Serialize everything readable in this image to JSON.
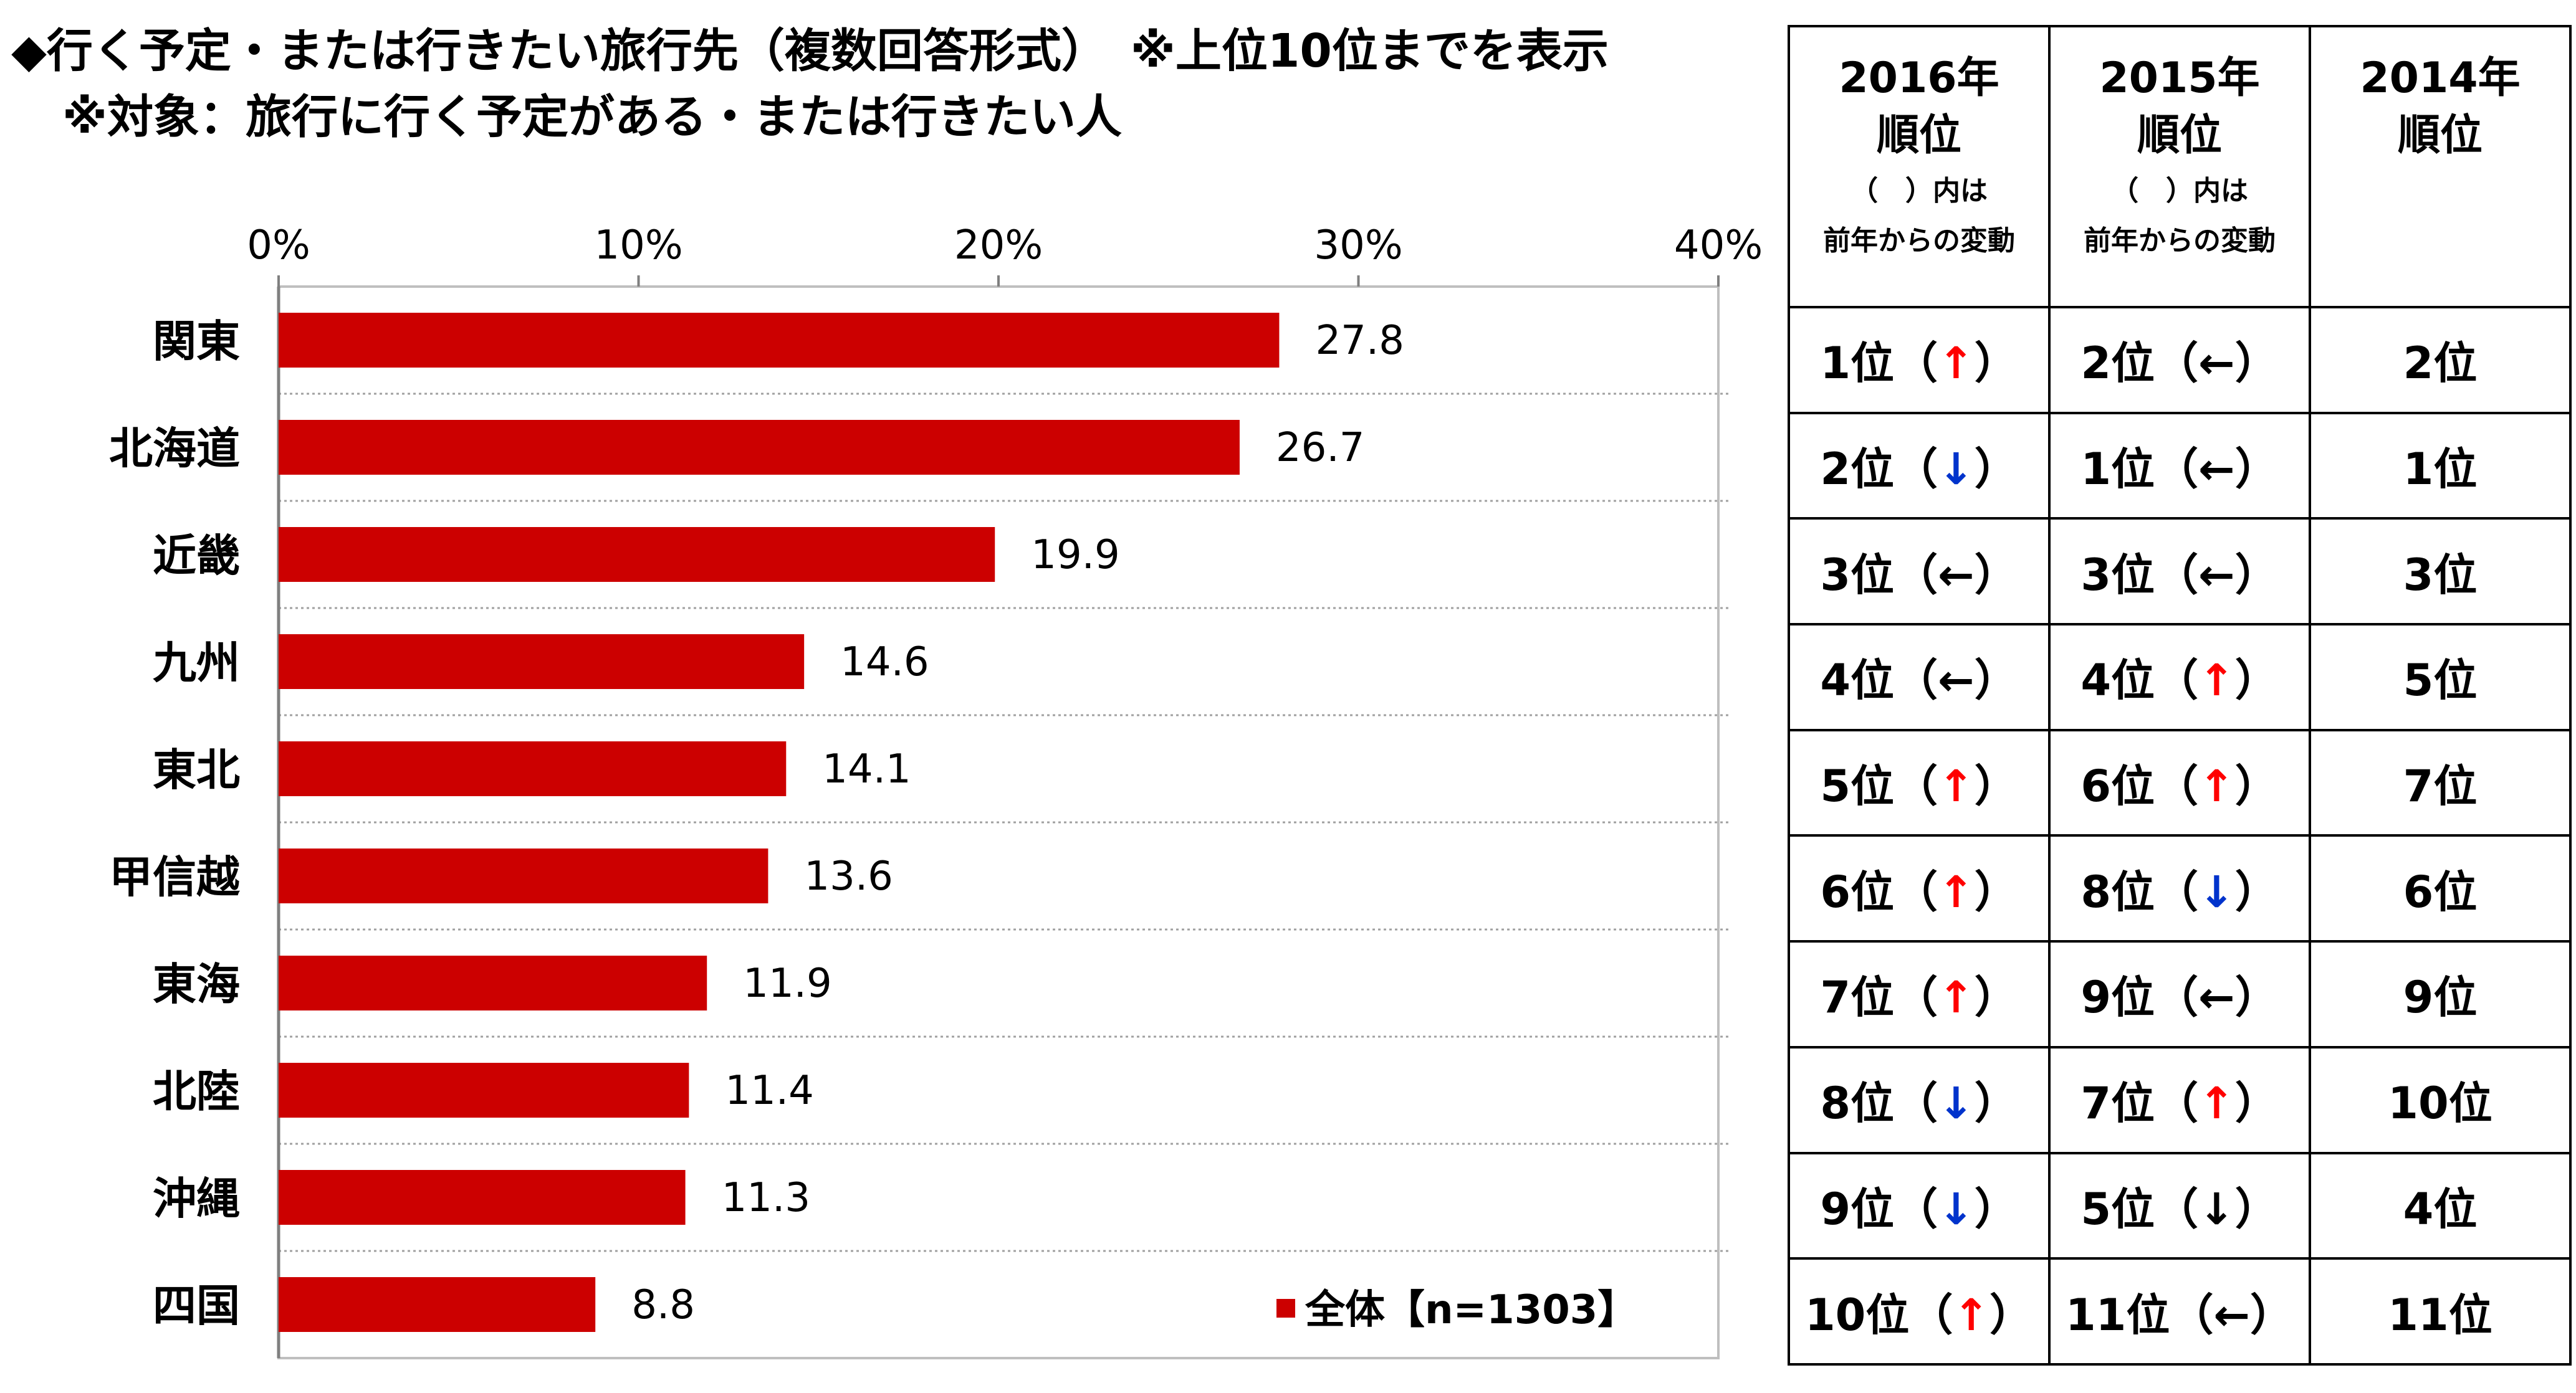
{
  "titles": {
    "line1": "◆行く予定・または行きたい旅行先（複数回答形式）　※上位10位までを表示",
    "line2": "※対象：旅行に行く予定がある・または行きたい人"
  },
  "chart_data": {
    "type": "bar",
    "orientation": "horizontal",
    "categories": [
      "関東",
      "北海道",
      "近畿",
      "九州",
      "東北",
      "甲信越",
      "東海",
      "北陸",
      "沖縄",
      "四国"
    ],
    "series": [
      {
        "name": "全体【n=1303】",
        "values": [
          27.8,
          26.7,
          19.9,
          14.6,
          14.1,
          13.6,
          11.9,
          11.4,
          11.3,
          8.8
        ]
      }
    ],
    "data_labels": [
      "27.8",
      "26.7",
      "19.9",
      "14.6",
      "14.1",
      "13.6",
      "11.9",
      "11.4",
      "11.3",
      "8.8"
    ],
    "xlim": [
      0,
      40
    ],
    "x_ticks": [
      0,
      10,
      20,
      30,
      40
    ],
    "x_tick_labels": [
      "0%",
      "10%",
      "20%",
      "30%",
      "40%"
    ],
    "x_axis_position": "top",
    "grid": true,
    "legend_position": "bottom-right",
    "bar_color": "#cc0000"
  },
  "rank_table": {
    "headers": [
      {
        "year": "2016年",
        "label": "順位",
        "sub1": "（　）内は",
        "sub2": "前年からの変動"
      },
      {
        "year": "2015年",
        "label": "順位",
        "sub1": "（　）内は",
        "sub2": "前年からの変動"
      },
      {
        "year": "2014年",
        "label": "順位",
        "sub1": "",
        "sub2": ""
      }
    ],
    "rows": [
      {
        "c2016": "1位",
        "a2016": "↑",
        "c2015": "2位",
        "a2015": "←",
        "c2014": "2位"
      },
      {
        "c2016": "2位",
        "a2016": "↓",
        "c2015": "1位",
        "a2015": "←",
        "c2014": "1位"
      },
      {
        "c2016": "3位",
        "a2016": "←",
        "c2015": "3位",
        "a2015": "←",
        "c2014": "3位"
      },
      {
        "c2016": "4位",
        "a2016": "←",
        "c2015": "4位",
        "a2015": "↑",
        "c2014": "5位"
      },
      {
        "c2016": "5位",
        "a2016": "↑",
        "c2015": "6位",
        "a2015": "↑",
        "c2014": "7位"
      },
      {
        "c2016": "6位",
        "a2016": "↑",
        "c2015": "8位",
        "a2015": "↓",
        "c2014": "6位"
      },
      {
        "c2016": "7位",
        "a2016": "↑",
        "c2015": "9位",
        "a2015": "←",
        "c2014": "9位"
      },
      {
        "c2016": "8位",
        "a2016": "↓",
        "c2015": "7位",
        "a2015": "↑",
        "c2014": "10位"
      },
      {
        "c2016": "9位",
        "a2016": "↓",
        "c2015": "5位",
        "a2015": "↓",
        "c2014": "4位"
      },
      {
        "c2016": "10位",
        "a2016": "↑",
        "c2015": "11位",
        "a2015": "←",
        "c2014": "11位"
      }
    ],
    "arrow_colors": {
      "up": "#ff0000",
      "down": "#0033cc",
      "flat": "#000000",
      "down_neutral": "#000000"
    }
  }
}
